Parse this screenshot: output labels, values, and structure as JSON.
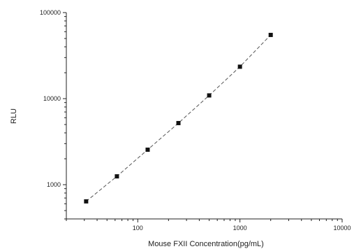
{
  "chart_data": {
    "type": "scatter",
    "title": "",
    "xlabel": "Mouse FXII Concentration(pg/mL)",
    "ylabel": "RLU",
    "x_scale": "log",
    "y_scale": "log",
    "xlim": [
      20,
      10000
    ],
    "ylim": [
      400,
      100000
    ],
    "x_ticks": [
      100,
      1000,
      10000
    ],
    "x_tick_labels": [
      "100",
      "1000",
      "10000"
    ],
    "y_ticks": [
      1000,
      10000,
      100000
    ],
    "y_tick_labels": [
      "1000",
      "10000",
      "100000"
    ],
    "grid": false,
    "legend": "none",
    "series": [
      {
        "x": [
          31.25,
          62.5,
          125,
          250,
          500,
          1000,
          2000
        ],
        "y": [
          640,
          1250,
          2550,
          5200,
          10900,
          23500,
          55000
        ],
        "marker": "square",
        "fit_line": "dashed"
      }
    ],
    "colors": {
      "marker": "#111111",
      "line": "#555555",
      "axis": "#222222"
    }
  }
}
